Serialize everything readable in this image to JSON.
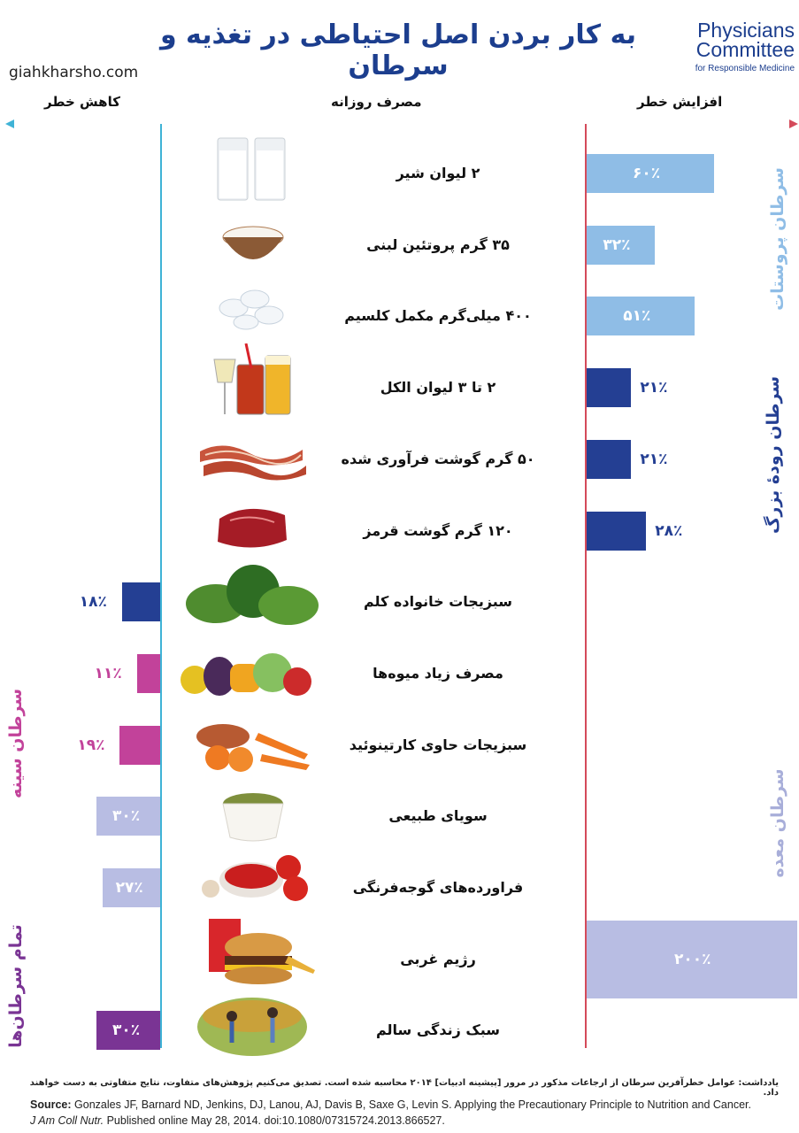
{
  "header": {
    "title": "به کار بردن اصل احتیاطی در تغذیه و سرطان",
    "site": "giahkharsho.com",
    "logo_line1": "Physicians",
    "logo_line2": "Committee",
    "logo_line3": "for Responsible Medicine",
    "col_decrease": "کاهش خطر",
    "col_daily": "مصرف روزانه",
    "col_increase": "افزایش خطر"
  },
  "colors": {
    "light_blue": "#8fbde6",
    "navy": "#243f93",
    "magenta": "#c2429a",
    "lavender": "#b8bde3",
    "purple": "#7a3494",
    "axis_left": "#3fb3d6",
    "axis_right": "#d44a5a"
  },
  "groups": {
    "prostate": "سرطان پروستات",
    "colorectal": "سرطان رودۀ بزرگ",
    "breast": "سرطان سینه",
    "stomach": "سرطان معده",
    "all": "تمام سرطان‌ها"
  },
  "chart_data": {
    "type": "bar",
    "categories": [
      "۲ لیوان شیر",
      "۳۵ گرم پروتئین لبنی",
      "۴۰۰ میلی‌گرم مکمل کلسیم",
      "۲ تا ۳ لیوان الکل",
      "۵۰ گرم گوشت فرآوری شده",
      "۱۲۰ گرم گوشت قرمز",
      "سبزیجات خانواده کلم",
      "مصرف زیاد میوه‌ها",
      "سبزیجات حاوی کارتینوئید",
      "سویای طبیعی",
      "فراورده‌های گوجه‌فرنگی",
      "رژیم غربی",
      "سبک زندگی سالم"
    ],
    "values": [
      60,
      32,
      51,
      21,
      21,
      28,
      -18,
      -11,
      -19,
      -30,
      -27,
      200,
      -30
    ],
    "value_labels": [
      "۶۰٪",
      "۳۲٪",
      "۵۱٪",
      "۲۱٪",
      "۲۱٪",
      "۲۸٪",
      "۱۸٪",
      "۱۱٪",
      "۱۹٪",
      "۳۰٪",
      "۲۷٪",
      "۲۰۰٪",
      "۳۰٪"
    ],
    "group": [
      "prostate",
      "prostate",
      "prostate",
      "colorectal",
      "colorectal",
      "colorectal",
      "breast",
      "breast",
      "breast",
      "stomach",
      "stomach",
      "stomach",
      "all"
    ]
  },
  "footer": {
    "note": "یادداشت: عوامل خطرآفرین سرطان از ارجاعات مذکور در مرور [پیشینه ادبیات] ۲۰۱۴ محاسبه شده است. تصدیق می‌کنیم پژوهش‌های متفاوت، نتایج متفاوتی به دست خواهند داد.",
    "source_label": "Source:",
    "source_text": " Gonzales JF, Barnard ND, Jenkins, DJ, Lanou, AJ, Davis B, Saxe G, Levin S. Applying the Precautionary Principle to Nutrition and Cancer.",
    "journal": "J Am Coll Nutr.",
    "source_line2": " Published online May 28, 2014. doi:10.1080/07315724.2013.866527."
  }
}
